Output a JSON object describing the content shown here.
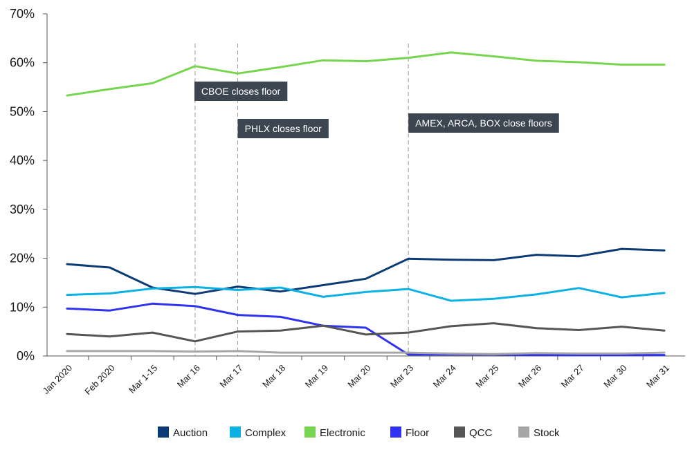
{
  "chart_data": {
    "type": "line",
    "categories": [
      "Jan 2020",
      "Feb 2020",
      "Mar 1-15",
      "Mar 16",
      "Mar 17",
      "Mar 18",
      "Mar 19",
      "Mar 20",
      "Mar 23",
      "Mar 24",
      "Mar 25",
      "Mar 26",
      "Mar 27",
      "Mar 30",
      "Mar 31"
    ],
    "ylim": [
      0,
      70
    ],
    "yticks": [
      0,
      10,
      20,
      30,
      40,
      50,
      60,
      70
    ],
    "ytick_labels": [
      "0%",
      "10%",
      "20%",
      "30%",
      "40%",
      "50%",
      "60%",
      "70%"
    ],
    "y_unit": "percent",
    "grid": false,
    "legend_position": "bottom",
    "series": [
      {
        "name": "Auction",
        "color": "#0b3a75",
        "values": [
          18.8,
          18.1,
          14.0,
          12.7,
          14.2,
          13.2,
          14.5,
          15.8,
          19.9,
          19.7,
          19.6,
          20.7,
          20.4,
          21.9,
          21.6
        ]
      },
      {
        "name": "Complex",
        "color": "#0bb1e3",
        "values": [
          12.5,
          12.8,
          13.8,
          14.1,
          13.5,
          14.0,
          12.1,
          13.1,
          13.7,
          11.3,
          11.7,
          12.6,
          13.9,
          12.0,
          12.9
        ]
      },
      {
        "name": "Electronic",
        "color": "#78d550",
        "values": [
          53.3,
          54.6,
          55.8,
          59.3,
          57.8,
          59.1,
          60.5,
          60.3,
          61.0,
          62.1,
          61.3,
          60.4,
          60.1,
          59.6,
          59.6
        ]
      },
      {
        "name": "Floor",
        "color": "#2f32f0",
        "values": [
          9.7,
          9.3,
          10.7,
          10.2,
          8.4,
          8.0,
          6.2,
          5.8,
          0.3,
          0.3,
          0.3,
          0.2,
          0.2,
          0.2,
          0.2
        ]
      },
      {
        "name": "QCC",
        "color": "#555555",
        "values": [
          4.5,
          4.0,
          4.8,
          3.0,
          5.0,
          5.2,
          6.2,
          4.4,
          4.8,
          6.1,
          6.7,
          5.7,
          5.3,
          6.0,
          5.2
        ]
      },
      {
        "name": "Stock",
        "color": "#a6a6a6",
        "values": [
          1.0,
          1.0,
          1.0,
          0.9,
          1.0,
          0.7,
          0.7,
          0.7,
          0.7,
          0.5,
          0.4,
          0.6,
          0.5,
          0.5,
          0.7
        ]
      }
    ],
    "annotations": [
      {
        "text": "CBOE closes floor",
        "at_category": "Mar 16"
      },
      {
        "text": "PHLX closes floor",
        "at_category": "Mar 17"
      },
      {
        "text": "AMEX, ARCA, BOX close floors",
        "at_category": "Mar 23"
      }
    ],
    "annotation_box_color": "#3c4650",
    "vline_color": "#9a9a9a"
  }
}
